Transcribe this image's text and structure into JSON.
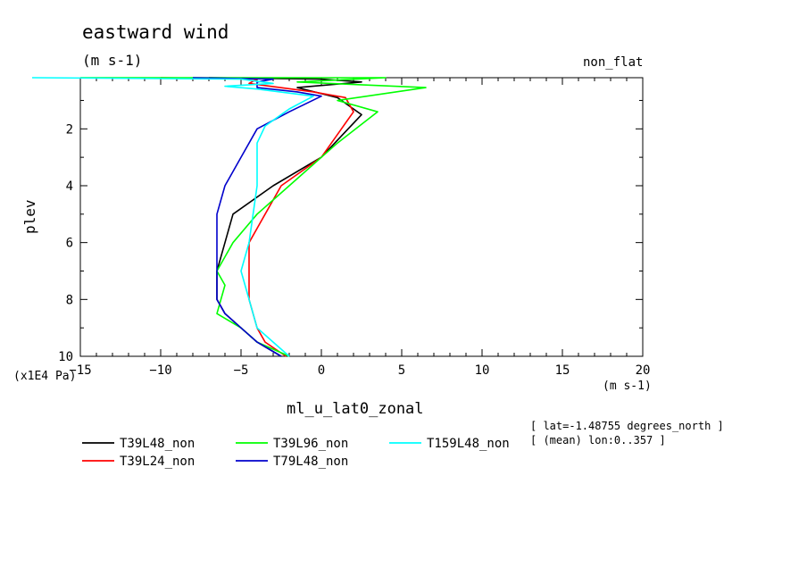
{
  "title": "eastward wind",
  "units": "(m s-1)",
  "subtitle_right": "non_flat",
  "info": {
    "lat": "[ lat=-1.48755 degrees_north ]",
    "lon": "[ (mean) lon:0..357 ]"
  },
  "chart_data": {
    "type": "line",
    "title": "eastward wind",
    "xlabel": "ml_u_lat0_zonal",
    "x_units": "(m s-1)",
    "ylabel": "plev",
    "y_units": "(x1E4 Pa)",
    "xlim": [
      -15,
      20
    ],
    "ylim": [
      10,
      0.2
    ],
    "y_inverted": true,
    "x_ticks": [
      -15,
      -10,
      -5,
      0,
      5,
      10,
      15,
      20
    ],
    "y_ticks": [
      2,
      4,
      6,
      8,
      10
    ],
    "legend_position": "bottom",
    "series": [
      {
        "name": "T39L48_non",
        "color": "#000000",
        "points": [
          [
            -7,
            0.2
          ],
          [
            0,
            0.25
          ],
          [
            2.5,
            0.35
          ],
          [
            -1.5,
            0.55
          ],
          [
            1,
            0.9
          ],
          [
            2.5,
            1.5
          ],
          [
            0,
            3
          ],
          [
            -3,
            4
          ],
          [
            -5.5,
            5
          ],
          [
            -6,
            6
          ],
          [
            -6.5,
            7
          ],
          [
            -6.5,
            8
          ],
          [
            -6,
            8.5
          ],
          [
            -5,
            9
          ],
          [
            -4,
            9.5
          ],
          [
            -2.5,
            10
          ]
        ]
      },
      {
        "name": "T39L24_non",
        "color": "#ff0000",
        "points": [
          [
            -10,
            0.2
          ],
          [
            -4,
            0.25
          ],
          [
            -4.5,
            0.4
          ],
          [
            -0.5,
            0.7
          ],
          [
            1.5,
            0.9
          ],
          [
            2,
            1.4
          ],
          [
            1.5,
            1.8
          ],
          [
            0,
            3
          ],
          [
            -2.5,
            4
          ],
          [
            -3.5,
            5
          ],
          [
            -4.5,
            6
          ],
          [
            -4.5,
            7
          ],
          [
            -4.5,
            8
          ],
          [
            -4,
            9
          ],
          [
            -3.5,
            9.5
          ],
          [
            -2.2,
            10
          ]
        ]
      },
      {
        "name": "T39L96_non",
        "color": "#00ff00",
        "points": [
          [
            -15,
            0.2
          ],
          [
            4,
            0.2
          ],
          [
            -1.5,
            0.35
          ],
          [
            6.5,
            0.55
          ],
          [
            1,
            1
          ],
          [
            3.5,
            1.4
          ],
          [
            1,
            2.5
          ],
          [
            -2,
            4
          ],
          [
            -4,
            5
          ],
          [
            -5.5,
            6
          ],
          [
            -6,
            6.5
          ],
          [
            -6.5,
            7
          ],
          [
            -6,
            7.5
          ],
          [
            -6.5,
            8.5
          ],
          [
            -5,
            9
          ],
          [
            -4,
            9.5
          ],
          [
            -2,
            10
          ]
        ]
      },
      {
        "name": "T79L48_non",
        "color": "#0000cc",
        "points": [
          [
            -8,
            0.2
          ],
          [
            -3,
            0.25
          ],
          [
            -4,
            0.35
          ],
          [
            -4,
            0.55
          ],
          [
            -1.5,
            0.7
          ],
          [
            0,
            0.85
          ],
          [
            -2,
            1.4
          ],
          [
            -4,
            2
          ],
          [
            -5,
            3
          ],
          [
            -6,
            4
          ],
          [
            -6.5,
            5
          ],
          [
            -6.5,
            6
          ],
          [
            -6.5,
            7
          ],
          [
            -6.5,
            8
          ],
          [
            -6,
            8.5
          ],
          [
            -5,
            9
          ],
          [
            -4,
            9.5
          ],
          [
            -2.5,
            10
          ]
        ]
      },
      {
        "name": "T159L48_non",
        "color": "#00ffff",
        "points": [
          [
            -18,
            0.2
          ],
          [
            -5,
            0.25
          ],
          [
            -3,
            0.4
          ],
          [
            -6,
            0.5
          ],
          [
            -4,
            0.6
          ],
          [
            -0.5,
            0.85
          ],
          [
            -2,
            1.3
          ],
          [
            -3.5,
            1.9
          ],
          [
            -4,
            2.5
          ],
          [
            -4,
            4
          ],
          [
            -4.5,
            6
          ],
          [
            -5,
            7
          ],
          [
            -4.5,
            8
          ],
          [
            -4,
            9
          ],
          [
            -3,
            9.5
          ],
          [
            -2,
            10
          ]
        ]
      }
    ]
  }
}
